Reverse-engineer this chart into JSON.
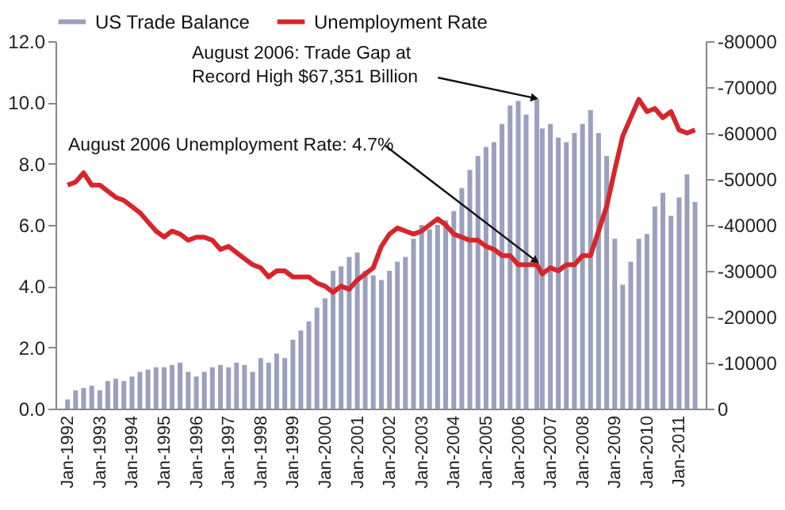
{
  "chart_data": {
    "type": "line",
    "x": [
      "1992-01",
      "1992-04",
      "1992-07",
      "1992-10",
      "1993-01",
      "1993-04",
      "1993-07",
      "1993-10",
      "1994-01",
      "1994-04",
      "1994-07",
      "1994-10",
      "1995-01",
      "1995-04",
      "1995-07",
      "1995-10",
      "1996-01",
      "1996-04",
      "1996-07",
      "1996-10",
      "1997-01",
      "1997-04",
      "1997-07",
      "1997-10",
      "1998-01",
      "1998-04",
      "1998-07",
      "1998-10",
      "1999-01",
      "1999-04",
      "1999-07",
      "1999-10",
      "2000-01",
      "2000-04",
      "2000-07",
      "2000-10",
      "2001-01",
      "2001-04",
      "2001-07",
      "2001-10",
      "2002-01",
      "2002-04",
      "2002-07",
      "2002-10",
      "2003-01",
      "2003-04",
      "2003-07",
      "2003-10",
      "2004-01",
      "2004-04",
      "2004-07",
      "2004-10",
      "2005-01",
      "2005-04",
      "2005-07",
      "2005-10",
      "2006-01",
      "2006-04",
      "2006-08",
      "2006-10",
      "2007-01",
      "2007-04",
      "2007-07",
      "2007-10",
      "2008-01",
      "2008-04",
      "2008-07",
      "2008-10",
      "2009-01",
      "2009-04",
      "2009-07",
      "2009-10",
      "2010-01",
      "2010-04",
      "2010-07",
      "2010-10",
      "2011-01",
      "2011-04",
      "2011-07"
    ],
    "series": [
      {
        "name": "US Trade Balance",
        "type": "bar",
        "axis": "y2",
        "color": "#9aa0bd",
        "values": [
          -2000,
          -4000,
          -4500,
          -5000,
          -4000,
          -6000,
          -6500,
          -6000,
          -7000,
          -8000,
          -8500,
          -9000,
          -9000,
          -9500,
          -10000,
          -8000,
          -7000,
          -8000,
          -9000,
          -9500,
          -9000,
          -10000,
          -9500,
          -8000,
          -11000,
          -10000,
          -12000,
          -11000,
          -15000,
          -17000,
          -19000,
          -22000,
          -24000,
          -30000,
          -31000,
          -33000,
          -34000,
          -30000,
          -29000,
          -28000,
          -30000,
          -32000,
          -33000,
          -37000,
          -40000,
          -39000,
          -40000,
          -41000,
          -43000,
          -48000,
          -52000,
          -55000,
          -57000,
          -58000,
          -62000,
          -66000,
          -67000,
          -64000,
          -67351,
          -61000,
          -62000,
          -59000,
          -58000,
          -60000,
          -62000,
          -65000,
          -60000,
          -55000,
          -37000,
          -27000,
          -32000,
          -37000,
          -38000,
          -44000,
          -47000,
          -42000,
          -46000,
          -51000,
          -45000
        ]
      },
      {
        "name": "Unemployment Rate",
        "color": "#d7262b",
        "values": [
          7.3,
          7.4,
          7.7,
          7.3,
          7.3,
          7.1,
          6.9,
          6.8,
          6.6,
          6.4,
          6.1,
          5.8,
          5.6,
          5.8,
          5.7,
          5.5,
          5.6,
          5.6,
          5.5,
          5.2,
          5.3,
          5.1,
          4.9,
          4.7,
          4.6,
          4.3,
          4.5,
          4.5,
          4.3,
          4.3,
          4.3,
          4.1,
          4.0,
          3.8,
          4.0,
          3.9,
          4.2,
          4.4,
          4.6,
          5.3,
          5.7,
          5.9,
          5.8,
          5.7,
          5.8,
          6.0,
          6.2,
          6.0,
          5.7,
          5.6,
          5.5,
          5.5,
          5.3,
          5.2,
          5.0,
          5.0,
          4.7,
          4.7,
          4.7,
          4.4,
          4.6,
          4.5,
          4.7,
          4.7,
          5.0,
          5.0,
          5.8,
          6.6,
          7.8,
          8.9,
          9.5,
          10.1,
          9.7,
          9.8,
          9.5,
          9.7,
          9.1,
          9.0,
          9.1
        ]
      }
    ],
    "xlim": [
      "1991-11-15",
      "2011-08"
    ],
    "xticks": [
      {
        "value": "1992-01",
        "label": "Jan-1992"
      },
      {
        "value": "1993-01",
        "label": "Jan-1993"
      },
      {
        "value": "1994-01",
        "label": "Jan-1994"
      },
      {
        "value": "1995-01",
        "label": "Jan-1995"
      },
      {
        "value": "1996-01",
        "label": "Jan-1996"
      },
      {
        "value": "1997-01",
        "label": "Jan-1997"
      },
      {
        "value": "1998-01",
        "label": "Jan-1998"
      },
      {
        "value": "1999-01",
        "label": "Jan-1999"
      },
      {
        "value": "2000-01",
        "label": "Jan-2000"
      },
      {
        "value": "2001-01",
        "label": "Jan-2001"
      },
      {
        "value": "2002-01",
        "label": "Jan-2002"
      },
      {
        "value": "2003-01",
        "label": "Jan-2003"
      },
      {
        "value": "2004-01",
        "label": "Jan-2004"
      },
      {
        "value": "2005-01",
        "label": "Jan-2005"
      },
      {
        "value": "2006-01",
        "label": "Jan-2006"
      },
      {
        "value": "2007-01",
        "label": "Jan-2007"
      },
      {
        "value": "2008-01",
        "label": "Jan-2008"
      },
      {
        "value": "2009-01",
        "label": "Jan-2009"
      },
      {
        "value": "2010-01",
        "label": "Jan-2010"
      },
      {
        "value": "2011-01",
        "label": "Jan-2011"
      }
    ],
    "ylim": [
      0,
      12
    ],
    "yticks": [
      {
        "value": 0,
        "label": "0.0"
      },
      {
        "value": 2,
        "label": "2.0"
      },
      {
        "value": 4,
        "label": "4.0"
      },
      {
        "value": 6,
        "label": "6.0"
      },
      {
        "value": 8,
        "label": "8.0"
      },
      {
        "value": 10,
        "label": "10.0"
      },
      {
        "value": 12,
        "label": "12.0"
      }
    ],
    "y2lim": [
      0,
      -80000
    ],
    "y2ticks": [
      0,
      -10000,
      -20000,
      -30000,
      -40000,
      -50000,
      -60000,
      -70000,
      -80000
    ],
    "legend": "top",
    "annotations": [
      {
        "text": "August 2006: Trade Gap at Record High $67,351 Billion",
        "x": "2006-08",
        "y": 10.1
      },
      {
        "text": "August 2006 Unemployment Rate: 4.7%",
        "x": "2006-08",
        "y": 4.7
      }
    ]
  }
}
